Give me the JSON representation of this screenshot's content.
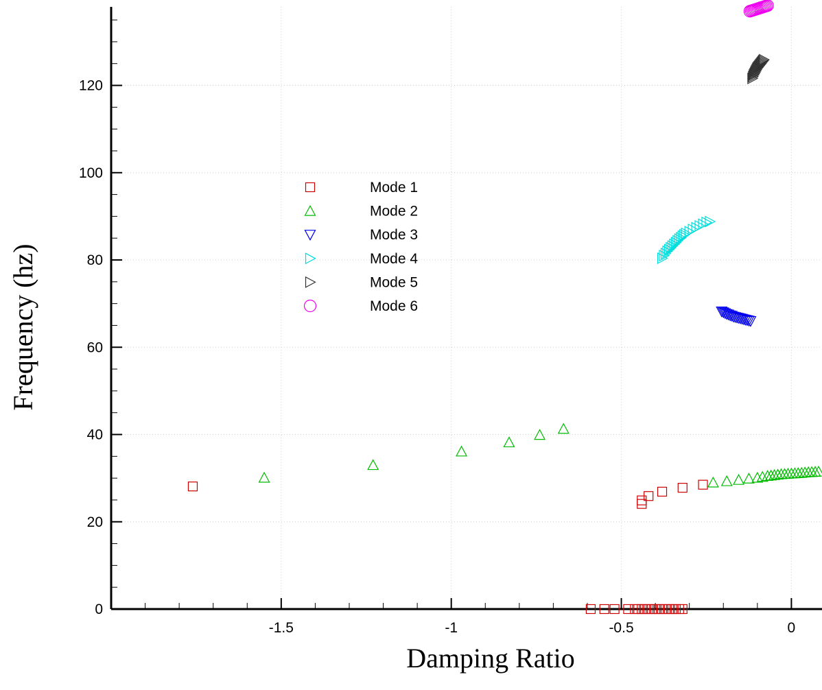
{
  "chart_data": {
    "type": "scatter",
    "xlabel": "Damping Ratio",
    "ylabel": "Frequency (hz)",
    "xlim": [
      -2.0,
      0.09
    ],
    "ylim": [
      0,
      138
    ],
    "x_ticks": [
      {
        "value": -1.5,
        "label": "-1.5"
      },
      {
        "value": -1.0,
        "label": "-1"
      },
      {
        "value": -0.5,
        "label": "-0.5"
      },
      {
        "value": 0.0,
        "label": "0"
      }
    ],
    "y_ticks": [
      {
        "value": 0,
        "label": "0"
      },
      {
        "value": 20,
        "label": "20"
      },
      {
        "value": 40,
        "label": "40"
      },
      {
        "value": 60,
        "label": "60"
      },
      {
        "value": 80,
        "label": "80"
      },
      {
        "value": 100,
        "label": "100"
      },
      {
        "value": 120,
        "label": "120"
      }
    ],
    "grid": true,
    "legend_position": "center-left",
    "series": [
      {
        "name": "Mode 1",
        "marker": "square",
        "color": "#cc0000",
        "points": [
          [
            -1.76,
            28.1
          ],
          [
            -0.44,
            24.1
          ],
          [
            -0.44,
            24.9
          ],
          [
            -0.42,
            25.9
          ],
          [
            -0.38,
            26.9
          ],
          [
            -0.32,
            27.8
          ],
          [
            -0.26,
            28.5
          ],
          [
            -0.59,
            0
          ],
          [
            -0.55,
            0
          ],
          [
            -0.52,
            0
          ],
          [
            -0.48,
            0
          ],
          [
            -0.46,
            0
          ],
          [
            -0.45,
            0
          ],
          [
            -0.44,
            0
          ],
          [
            -0.43,
            0
          ],
          [
            -0.42,
            0
          ],
          [
            -0.41,
            0
          ],
          [
            -0.4,
            0
          ],
          [
            -0.39,
            0
          ],
          [
            -0.38,
            0
          ],
          [
            -0.37,
            0
          ],
          [
            -0.36,
            0
          ],
          [
            -0.35,
            0
          ],
          [
            -0.34,
            0
          ],
          [
            -0.33,
            0
          ],
          [
            -0.32,
            0
          ]
        ]
      },
      {
        "name": "Mode 2",
        "marker": "triangle-up",
        "color": "#00bb00",
        "points": [
          [
            -1.55,
            30.1
          ],
          [
            -1.23,
            33.0
          ],
          [
            -0.97,
            36.1
          ],
          [
            -0.83,
            38.2
          ],
          [
            -0.74,
            39.9
          ],
          [
            -0.67,
            41.3
          ],
          [
            -0.23,
            29.0
          ],
          [
            -0.19,
            29.3
          ],
          [
            -0.155,
            29.6
          ],
          [
            -0.125,
            29.9
          ],
          [
            -0.1,
            30.1
          ],
          [
            -0.085,
            30.3
          ],
          [
            -0.07,
            30.5
          ],
          [
            -0.06,
            30.6
          ],
          [
            -0.05,
            30.7
          ],
          [
            -0.04,
            30.8
          ],
          [
            -0.03,
            30.9
          ],
          [
            -0.02,
            30.95
          ],
          [
            -0.01,
            31.0
          ],
          [
            0.0,
            31.05
          ],
          [
            0.01,
            31.1
          ],
          [
            0.02,
            31.15
          ],
          [
            0.03,
            31.2
          ],
          [
            0.04,
            31.3
          ],
          [
            0.05,
            31.35
          ],
          [
            0.06,
            31.4
          ],
          [
            0.07,
            31.45
          ],
          [
            0.08,
            31.5
          ]
        ]
      },
      {
        "name": "Mode 3",
        "marker": "triangle-down",
        "color": "#0000ee",
        "points": [
          [
            -0.205,
            68.2
          ],
          [
            -0.2,
            68.0
          ],
          [
            -0.195,
            67.8
          ],
          [
            -0.19,
            67.6
          ],
          [
            -0.185,
            67.5
          ],
          [
            -0.18,
            67.3
          ],
          [
            -0.175,
            67.2
          ],
          [
            -0.17,
            67.0
          ],
          [
            -0.165,
            66.9
          ],
          [
            -0.16,
            66.8
          ],
          [
            -0.155,
            66.7
          ],
          [
            -0.15,
            66.6
          ],
          [
            -0.145,
            66.5
          ],
          [
            -0.14,
            66.4
          ],
          [
            -0.135,
            66.3
          ],
          [
            -0.13,
            66.2
          ],
          [
            -0.125,
            66.1
          ],
          [
            -0.12,
            66.0
          ]
        ]
      },
      {
        "name": "Mode 4",
        "marker": "triangle-right",
        "color": "#00dddd",
        "points": [
          [
            -0.38,
            80.4
          ],
          [
            -0.375,
            81.0
          ],
          [
            -0.37,
            81.5
          ],
          [
            -0.365,
            82.0
          ],
          [
            -0.36,
            82.4
          ],
          [
            -0.355,
            82.8
          ],
          [
            -0.35,
            83.2
          ],
          [
            -0.345,
            83.6
          ],
          [
            -0.34,
            84.0
          ],
          [
            -0.335,
            84.4
          ],
          [
            -0.33,
            84.8
          ],
          [
            -0.325,
            85.1
          ],
          [
            -0.32,
            85.5
          ],
          [
            -0.315,
            85.8
          ],
          [
            -0.31,
            86.1
          ],
          [
            -0.3,
            86.5
          ],
          [
            -0.29,
            87.0
          ],
          [
            -0.28,
            87.4
          ],
          [
            -0.27,
            87.8
          ],
          [
            -0.26,
            88.2
          ],
          [
            -0.25,
            88.6
          ],
          [
            -0.24,
            88.8
          ]
        ]
      },
      {
        "name": "Mode 5",
        "marker": "triangle-right",
        "color": "#333333",
        "points": [
          [
            -0.115,
            121.6
          ],
          [
            -0.113,
            122.0
          ],
          [
            -0.111,
            122.4
          ],
          [
            -0.109,
            122.7
          ],
          [
            -0.107,
            123.0
          ],
          [
            -0.105,
            123.3
          ],
          [
            -0.103,
            123.6
          ],
          [
            -0.101,
            123.9
          ],
          [
            -0.099,
            124.1
          ],
          [
            -0.097,
            124.3
          ],
          [
            -0.095,
            124.5
          ],
          [
            -0.093,
            124.7
          ],
          [
            -0.091,
            124.9
          ],
          [
            -0.089,
            125.1
          ],
          [
            -0.087,
            125.3
          ],
          [
            -0.085,
            125.5
          ],
          [
            -0.083,
            125.7
          ],
          [
            -0.081,
            125.9
          ]
        ]
      },
      {
        "name": "Mode 6",
        "marker": "circle",
        "color": "#ee00ee",
        "points": [
          [
            -0.122,
            137.0
          ],
          [
            -0.118,
            137.1
          ],
          [
            -0.114,
            137.2
          ],
          [
            -0.11,
            137.3
          ],
          [
            -0.106,
            137.4
          ],
          [
            -0.102,
            137.5
          ],
          [
            -0.098,
            137.6
          ],
          [
            -0.094,
            137.7
          ],
          [
            -0.09,
            137.8
          ],
          [
            -0.086,
            137.9
          ],
          [
            -0.082,
            138.0
          ],
          [
            -0.078,
            138.1
          ],
          [
            -0.074,
            138.2
          ],
          [
            -0.07,
            138.3
          ]
        ]
      }
    ]
  }
}
